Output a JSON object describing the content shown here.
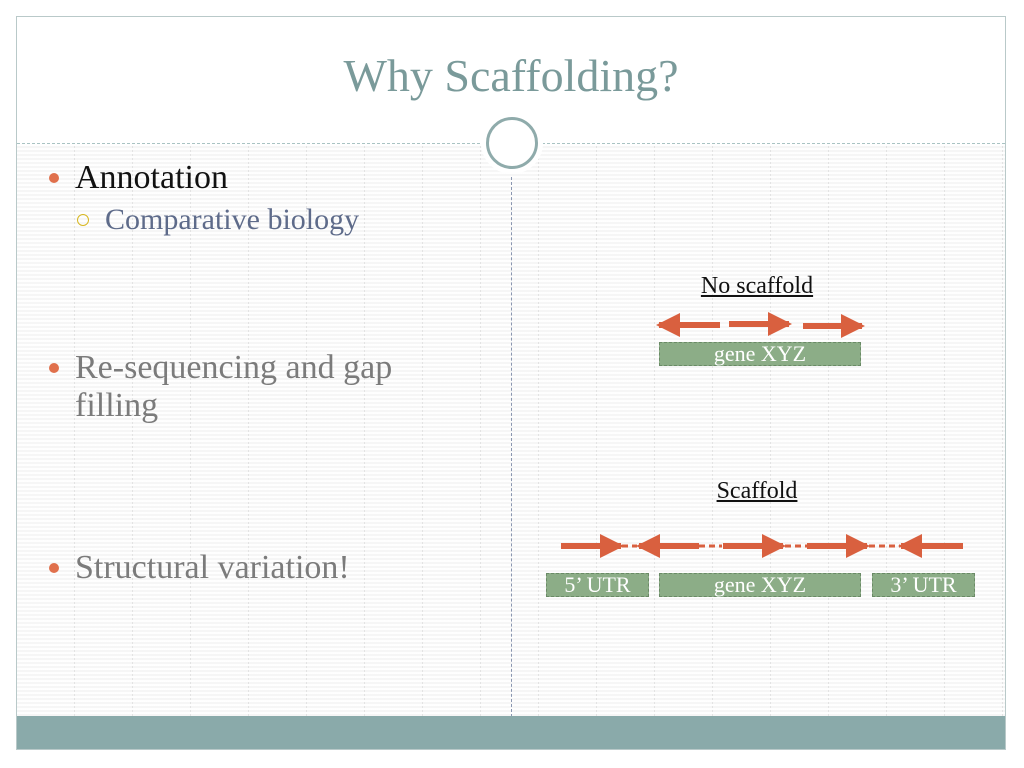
{
  "slide": {
    "title": "Why Scaffolding?",
    "bullets": [
      {
        "text": "Annotation",
        "sub": [
          "Comparative biology"
        ]
      },
      {
        "text": "Re-sequencing and gap filling"
      },
      {
        "text": "Structural variation!"
      }
    ]
  },
  "diagram": {
    "no_scaffold_label": "No scaffold",
    "scaffold_label": "Scaffold",
    "gene_label": "gene XYZ",
    "utr5_label": "5’ UTR",
    "utr3_label": "3’ UTR"
  },
  "colors": {
    "title": "#7a9a9a",
    "accent_bullet": "#e0704c",
    "sub_bullet_ring": "#d7b722",
    "arrow": "#d9603f",
    "gene_box": "#8cad87",
    "footer": "#8aaaaa"
  },
  "icons": [
    "title-circle-ornament",
    "bullet-dot-icon",
    "sub-bullet-ring-icon",
    "contig-arrow-icon"
  ]
}
